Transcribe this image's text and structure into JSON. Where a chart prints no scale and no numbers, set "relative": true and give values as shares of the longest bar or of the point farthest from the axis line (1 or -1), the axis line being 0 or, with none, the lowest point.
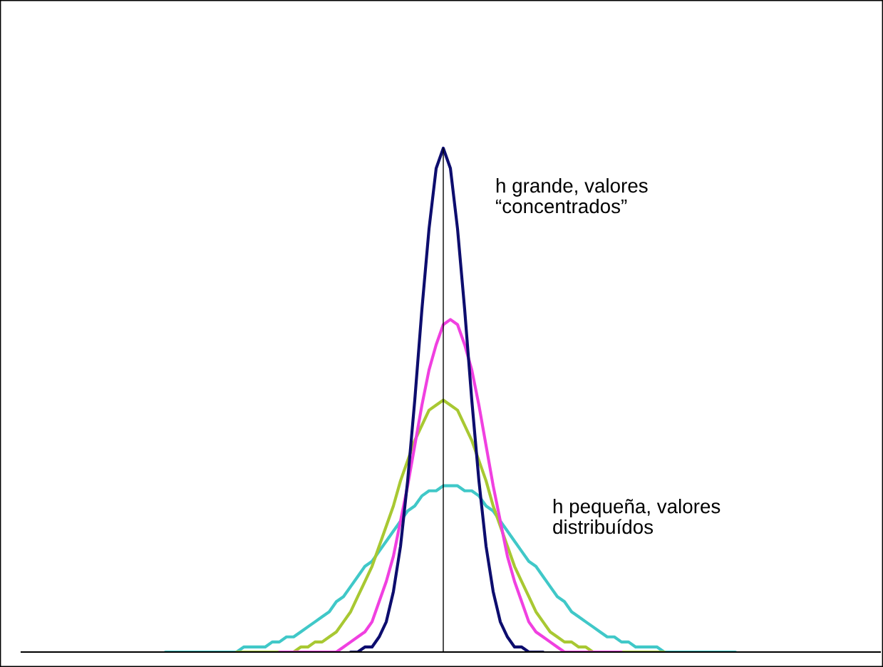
{
  "chart_data": {
    "type": "line",
    "relative": true,
    "categories": [
      null,
      null,
      null,
      null,
      null,
      null,
      null,
      null,
      null,
      null,
      null,
      null,
      null,
      null,
      null,
      null,
      null,
      null,
      null,
      null,
      null,
      null,
      null,
      null,
      null,
      null,
      null,
      null,
      null,
      null,
      null,
      null,
      null,
      null,
      null,
      null,
      null,
      null,
      null,
      null,
      null,
      null,
      null,
      null,
      null,
      null,
      null,
      null,
      null,
      null,
      null,
      null,
      null,
      null,
      null,
      null,
      null,
      null,
      null,
      null,
      null,
      null,
      null,
      null,
      null,
      null,
      null,
      null,
      null,
      null,
      null,
      null,
      null,
      null,
      null,
      null,
      null,
      null,
      null,
      null,
      null
    ],
    "series": [
      {
        "color": "#40c8c8",
        "values": [
          0.0,
          0.0,
          0.0,
          0.0,
          0.0,
          0.0,
          0.0,
          0.0,
          0.0,
          0.0,
          0.0,
          0.01,
          0.01,
          0.01,
          0.01,
          0.02,
          0.02,
          0.03,
          0.03,
          0.04,
          0.05,
          0.06,
          0.07,
          0.08,
          0.1,
          0.11,
          0.13,
          0.15,
          0.17,
          0.18,
          0.2,
          0.22,
          0.24,
          0.26,
          0.28,
          0.29,
          0.31,
          0.32,
          0.32,
          0.33,
          0.33,
          0.33,
          0.32,
          0.32,
          0.31,
          0.29,
          0.28,
          0.26,
          0.24,
          0.22,
          0.2,
          0.18,
          0.17,
          0.15,
          0.13,
          0.11,
          0.1,
          0.08,
          0.07,
          0.06,
          0.05,
          0.04,
          0.03,
          0.03,
          0.02,
          0.02,
          0.01,
          0.01,
          0.01,
          0.01,
          0.0,
          0.0,
          0.0,
          0.0,
          0.0,
          0.0,
          0.0,
          0.0,
          0.0,
          0.0,
          0.0
        ]
      },
      {
        "color": "#a8c832",
        "values": [
          null,
          null,
          null,
          null,
          null,
          null,
          null,
          null,
          null,
          null,
          0.0,
          0.0,
          0.0,
          0.0,
          0.0,
          0.0,
          0.0,
          0.0,
          0.0,
          0.01,
          0.01,
          0.02,
          0.02,
          0.03,
          0.04,
          0.06,
          0.08,
          0.11,
          0.14,
          0.17,
          0.21,
          0.25,
          0.29,
          0.34,
          0.38,
          0.42,
          0.45,
          0.48,
          0.49,
          0.5,
          0.49,
          0.48,
          0.45,
          0.42,
          0.38,
          0.34,
          0.29,
          0.25,
          0.21,
          0.17,
          0.14,
          0.11,
          0.08,
          0.06,
          0.04,
          0.03,
          0.02,
          0.02,
          0.01,
          0.01,
          0.0,
          0.0,
          0.0,
          0.0,
          0.0,
          0.0,
          0.0,
          0.0,
          0.0,
          0.0,
          0.0,
          null,
          null,
          null,
          null,
          null,
          null,
          null,
          null,
          null,
          null
        ]
      },
      {
        "color": "#f040e0",
        "values": [
          null,
          null,
          null,
          null,
          null,
          null,
          null,
          null,
          null,
          null,
          null,
          null,
          null,
          null,
          null,
          null,
          0.0,
          0.0,
          0.0,
          0.0,
          0.0,
          0.0,
          0.0,
          0.0,
          0.0,
          0.01,
          0.02,
          0.03,
          0.04,
          0.06,
          0.1,
          0.14,
          0.19,
          0.26,
          0.33,
          0.41,
          0.49,
          0.56,
          0.61,
          0.65,
          0.66,
          0.65,
          0.61,
          0.56,
          0.49,
          0.41,
          0.33,
          0.26,
          0.19,
          0.14,
          0.1,
          0.06,
          0.04,
          0.03,
          0.02,
          0.01,
          0.0,
          0.0,
          0.0,
          0.0,
          0.0,
          0.0,
          0.0,
          0.0,
          0.0,
          null,
          null,
          null,
          null,
          null,
          null,
          null,
          null,
          null,
          null,
          null,
          null,
          null,
          null,
          null,
          null
        ]
      },
      {
        "color": "#0d0d6e",
        "values": [
          null,
          null,
          null,
          null,
          null,
          null,
          null,
          null,
          null,
          null,
          null,
          null,
          null,
          null,
          null,
          null,
          null,
          null,
          null,
          null,
          null,
          null,
          null,
          null,
          null,
          null,
          0.0,
          0.0,
          0.01,
          0.01,
          0.03,
          0.06,
          0.12,
          0.21,
          0.34,
          0.5,
          0.68,
          0.84,
          0.96,
          1.0,
          0.96,
          0.84,
          0.68,
          0.5,
          0.34,
          0.21,
          0.12,
          0.06,
          0.03,
          0.01,
          0.01,
          0.0,
          0.0,
          0.0,
          null,
          null,
          null,
          null,
          null,
          null,
          null,
          null,
          null,
          null,
          null,
          null,
          null,
          null,
          null,
          null,
          null,
          null,
          null,
          null,
          null,
          null,
          null,
          null,
          null,
          null,
          null
        ]
      }
    ],
    "annotations": [
      "h grande, valores\n“concentrados”",
      "h pequeña, valores\ndistribuídos"
    ]
  }
}
